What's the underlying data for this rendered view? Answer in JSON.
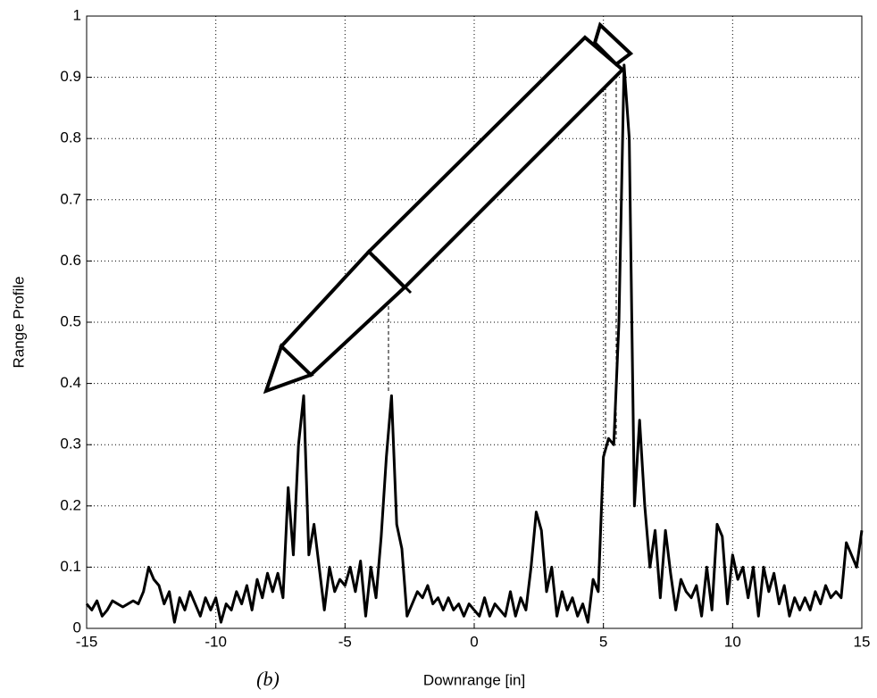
{
  "chart_data": {
    "type": "line",
    "xlabel": "Downrange [in]",
    "ylabel": "Range Profile",
    "caption": "(b)",
    "x": [
      -15,
      -14.8,
      -14.6,
      -14.4,
      -14.2,
      -14,
      -13.8,
      -13.6,
      -13.4,
      -13.2,
      -13,
      -12.8,
      -12.6,
      -12.4,
      -12.2,
      -12,
      -11.8,
      -11.6,
      -11.4,
      -11.2,
      -11,
      -10.8,
      -10.6,
      -10.4,
      -10.2,
      -10,
      -9.8,
      -9.6,
      -9.4,
      -9.2,
      -9,
      -8.8,
      -8.6,
      -8.4,
      -8.2,
      -8,
      -7.8,
      -7.6,
      -7.4,
      -7.2,
      -7,
      -6.8,
      -6.6,
      -6.4,
      -6.2,
      -6,
      -5.8,
      -5.6,
      -5.4,
      -5.2,
      -5,
      -4.8,
      -4.6,
      -4.4,
      -4.2,
      -4,
      -3.8,
      -3.6,
      -3.4,
      -3.2,
      -3,
      -2.8,
      -2.6,
      -2.4,
      -2.2,
      -2,
      -1.8,
      -1.6,
      -1.4,
      -1.2,
      -1,
      -0.8,
      -0.6,
      -0.4,
      -0.2,
      0,
      0.2,
      0.4,
      0.6,
      0.8,
      1,
      1.2,
      1.4,
      1.6,
      1.8,
      2,
      2.2,
      2.4,
      2.6,
      2.8,
      3,
      3.2,
      3.4,
      3.6,
      3.8,
      4,
      4.2,
      4.4,
      4.6,
      4.8,
      5,
      5.2,
      5.4,
      5.6,
      5.8,
      6,
      6.2,
      6.4,
      6.6,
      6.8,
      7,
      7.2,
      7.4,
      7.6,
      7.8,
      8,
      8.2,
      8.4,
      8.6,
      8.8,
      9,
      9.2,
      9.4,
      9.6,
      9.8,
      10,
      10.2,
      10.4,
      10.6,
      10.8,
      11,
      11.2,
      11.4,
      11.6,
      11.8,
      12,
      12.2,
      12.4,
      12.6,
      12.8,
      13,
      13.2,
      13.4,
      13.6,
      13.8,
      14,
      14.2,
      14.4,
      14.6,
      14.8,
      15
    ],
    "series": [
      {
        "color": "#000000",
        "values": [
          0.04,
          0.03,
          0.045,
          0.02,
          0.03,
          0.045,
          0.04,
          0.035,
          0.04,
          0.045,
          0.04,
          0.06,
          0.1,
          0.08,
          0.07,
          0.04,
          0.06,
          0.01,
          0.05,
          0.03,
          0.06,
          0.04,
          0.02,
          0.05,
          0.03,
          0.05,
          0.01,
          0.04,
          0.03,
          0.06,
          0.04,
          0.07,
          0.03,
          0.08,
          0.05,
          0.09,
          0.06,
          0.09,
          0.05,
          0.23,
          0.12,
          0.3,
          0.38,
          0.12,
          0.17,
          0.1,
          0.03,
          0.1,
          0.06,
          0.08,
          0.07,
          0.1,
          0.06,
          0.11,
          0.02,
          0.1,
          0.05,
          0.15,
          0.28,
          0.38,
          0.17,
          0.13,
          0.02,
          0.04,
          0.06,
          0.05,
          0.07,
          0.04,
          0.05,
          0.03,
          0.05,
          0.03,
          0.04,
          0.02,
          0.04,
          0.03,
          0.02,
          0.05,
          0.02,
          0.04,
          0.03,
          0.02,
          0.06,
          0.02,
          0.05,
          0.03,
          0.1,
          0.19,
          0.16,
          0.06,
          0.1,
          0.02,
          0.06,
          0.03,
          0.05,
          0.02,
          0.04,
          0.01,
          0.08,
          0.06,
          0.28,
          0.31,
          0.3,
          0.5,
          0.92,
          0.8,
          0.2,
          0.34,
          0.2,
          0.1,
          0.16,
          0.05,
          0.16,
          0.09,
          0.03,
          0.08,
          0.06,
          0.05,
          0.07,
          0.02,
          0.1,
          0.03,
          0.17,
          0.15,
          0.04,
          0.12,
          0.08,
          0.1,
          0.05,
          0.1,
          0.02,
          0.1,
          0.06,
          0.09,
          0.04,
          0.07,
          0.02,
          0.05,
          0.03,
          0.05,
          0.03,
          0.06,
          0.04,
          0.07,
          0.05,
          0.06,
          0.05,
          0.14,
          0.12,
          0.1,
          0.16
        ]
      }
    ],
    "xlim": [
      -15,
      15
    ],
    "xticks": [
      -15,
      -10,
      -5,
      0,
      5,
      10,
      15
    ],
    "ylim": [
      0,
      1
    ],
    "yticks": [
      0,
      0.1,
      0.2,
      0.3,
      0.4,
      0.5,
      0.6,
      0.7,
      0.8,
      0.9,
      1
    ],
    "grid": true
  }
}
